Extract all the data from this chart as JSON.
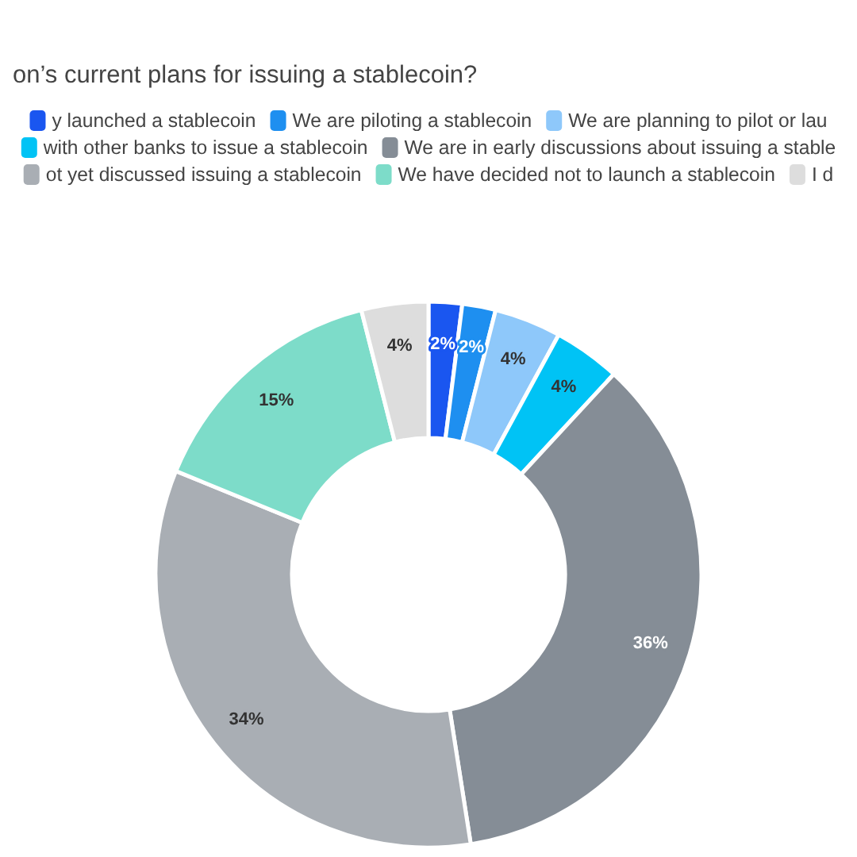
{
  "chart_data": {
    "type": "donut",
    "title": "on’s current plans for issuing a stablecoin?",
    "categories": [
      "y launched a stablecoin",
      "We are piloting a stablecoin",
      "We are planning to pilot or lau",
      "with other banks to issue a stablecoin",
      "We are in early discussions about issuing a stable",
      "ot yet discussed issuing a stablecoin",
      "We have decided not to launch a stablecoin",
      "I d"
    ],
    "values": [
      2,
      2,
      4,
      4,
      36,
      34,
      15,
      4
    ],
    "colors": [
      "#1a56f0",
      "#1e8ff0",
      "#8ec8fa",
      "#00c3f5",
      "#858d96",
      "#a9aeb4",
      "#7ddcc9",
      "#dddddd"
    ],
    "value_labels": [
      "2%",
      "2%",
      "4%",
      "4%",
      "36%",
      "34%",
      "15%",
      "4%"
    ],
    "legend": "top"
  }
}
